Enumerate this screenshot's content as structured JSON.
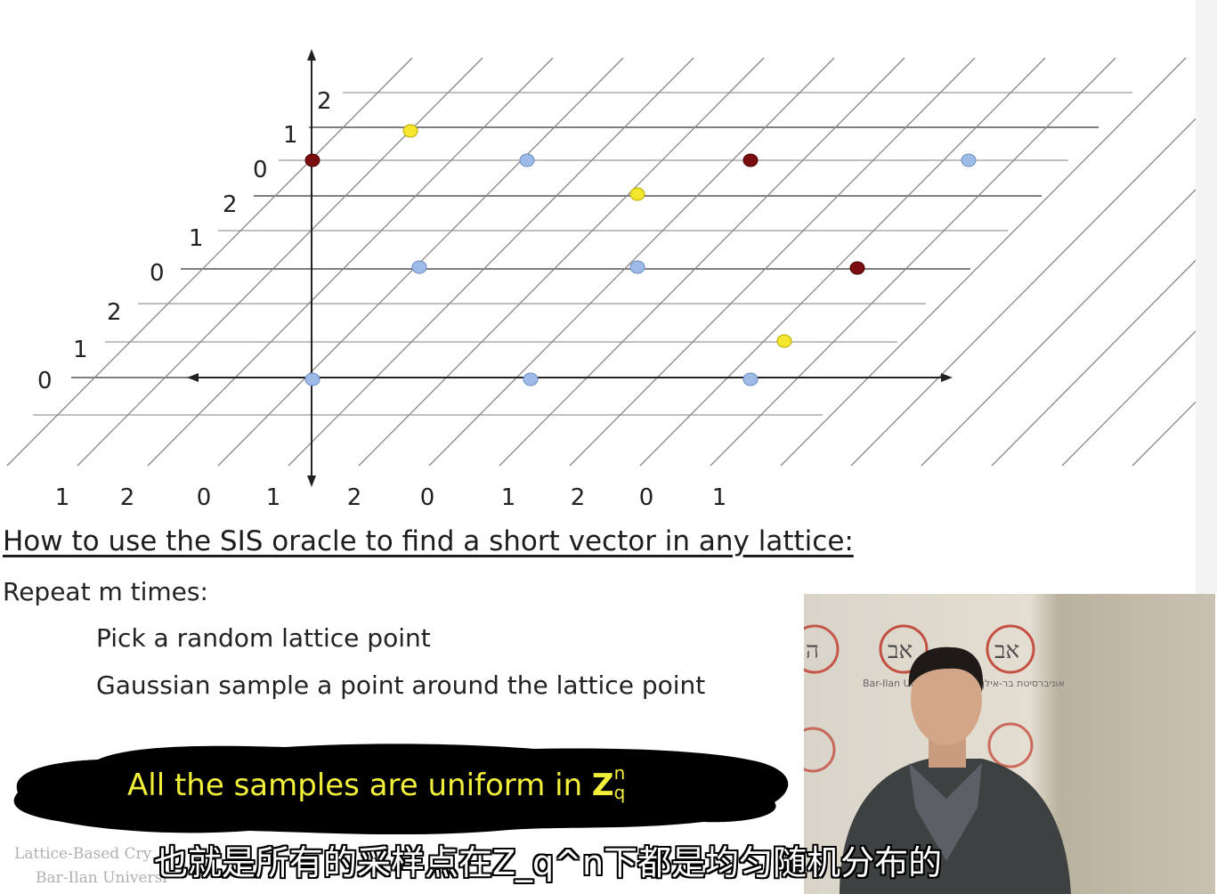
{
  "slide": {
    "title": "How to use the SIS oracle to find a short vector in any lattice:",
    "repeat_line": "Repeat m times:",
    "steps": [
      "Pick a random lattice point",
      "Gaussian sample a point around the lattice point"
    ],
    "highlight_text": "All the samples are uniform in ",
    "highlight_symbol": "Z",
    "highlight_sup": "n",
    "highlight_sub": "q",
    "footer_line1": "Lattice-Based Cry",
    "footer_line2": "Bar-Ilan Universi"
  },
  "subtitle": "也就是所有的采样点在Z_q^n下都是均匀随机分布的",
  "lattice": {
    "row_labels": [
      "2",
      "1",
      "0",
      "2",
      "1",
      "0",
      "2",
      "1",
      "0"
    ],
    "bottom_labels": [
      "1",
      "2",
      "0",
      "1",
      "2",
      "0",
      "1",
      "2",
      "0",
      "1"
    ],
    "point_colors": {
      "blue": "#9dbbe6",
      "red": "#7a0d0d",
      "yellow": "#f4e62c"
    }
  },
  "video": {
    "logo_text_en": "Bar-Ilan University",
    "logo_text_he": "אוניברסיטת בר-אילן"
  }
}
